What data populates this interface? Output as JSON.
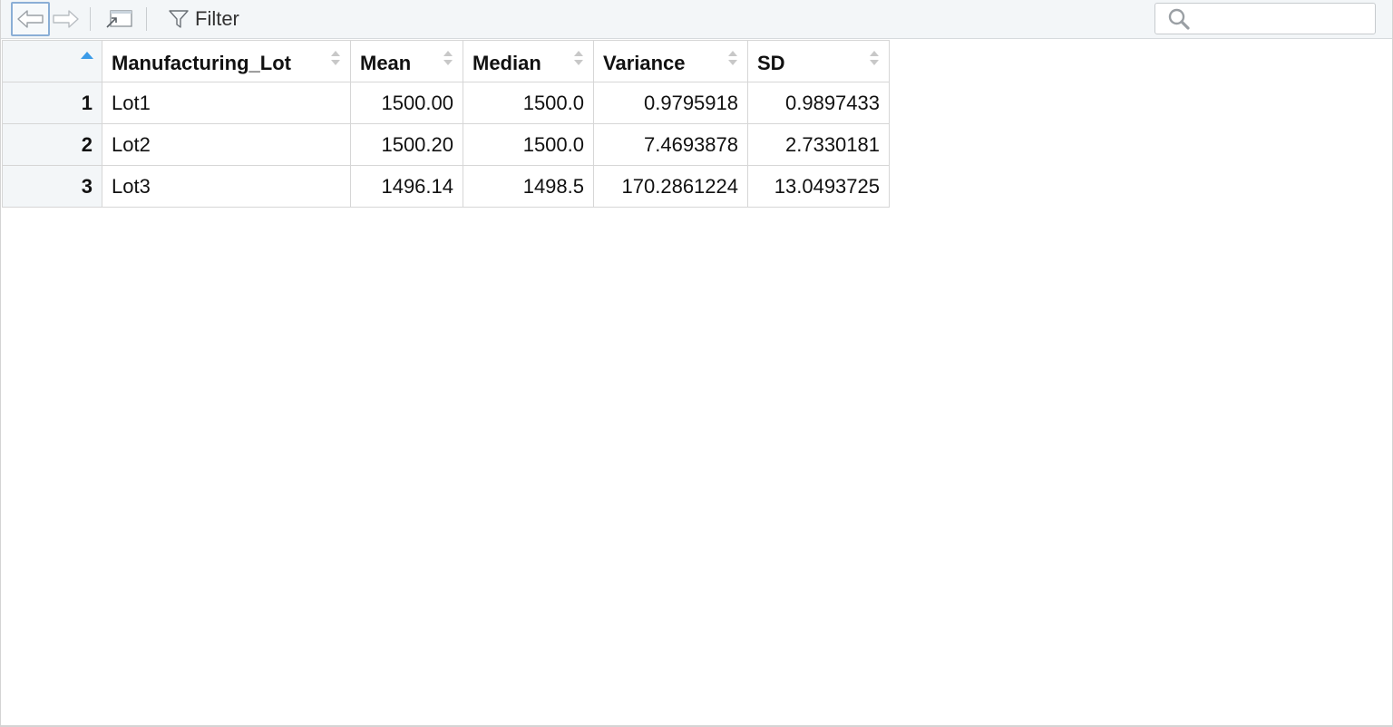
{
  "toolbar": {
    "back_icon": "arrow-left-icon",
    "forward_icon": "arrow-right-icon",
    "popout_icon": "popout-window-icon",
    "filter_icon": "filter-icon",
    "filter_label": "Filter",
    "search_icon": "search-icon",
    "search_value": "",
    "search_placeholder": ""
  },
  "table": {
    "columns": [
      "",
      "Manufacturing_Lot",
      "Mean",
      "Median",
      "Variance",
      "SD"
    ],
    "sorted_column_index": 0,
    "sort_direction": "ascending",
    "rows": [
      {
        "row": "1",
        "lot": "Lot1",
        "mean": "1500.00",
        "median": "1500.0",
        "variance": "0.9795918",
        "sd": "0.9897433"
      },
      {
        "row": "2",
        "lot": "Lot2",
        "mean": "1500.20",
        "median": "1500.0",
        "variance": "7.4693878",
        "sd": "2.7330181"
      },
      {
        "row": "3",
        "lot": "Lot3",
        "mean": "1496.14",
        "median": "1498.5",
        "variance": "170.2861224",
        "sd": "13.0493725"
      }
    ]
  },
  "colors": {
    "toolbar_bg": "#f3f6f8",
    "rownum_bg": "#f3f6f8",
    "border": "#d6d6d6",
    "sort_active": "#3b9be8",
    "sort_inactive": "#c8c8c8",
    "focus_outline": "#8aaed6"
  }
}
